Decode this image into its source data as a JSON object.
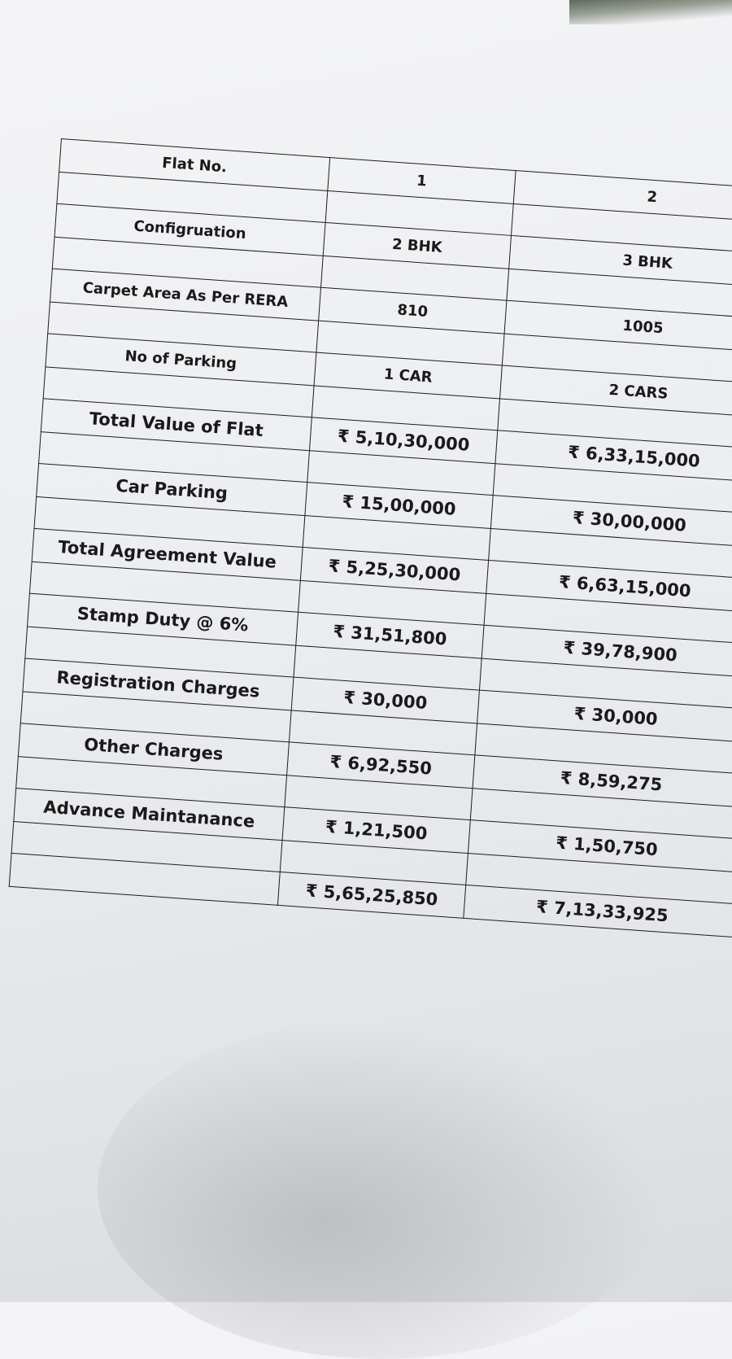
{
  "table": {
    "rows": [
      {
        "label": "Flat No.",
        "flat1": "1",
        "flat2": "2"
      },
      {
        "label": "Configruation",
        "flat1": "2 BHK",
        "flat2": "3 BHK"
      },
      {
        "label": "Carpet Area As Per RERA",
        "flat1": "810",
        "flat2": "1005"
      },
      {
        "label": "No of Parking",
        "flat1": "1 CAR",
        "flat2": "2 CARS"
      },
      {
        "label": "Total Value of Flat",
        "flat1": "₹ 5,10,30,000",
        "flat2": "₹ 6,33,15,000"
      },
      {
        "label": "Car Parking",
        "flat1": "₹ 15,00,000",
        "flat2": "₹ 30,00,000"
      },
      {
        "label": "Total Agreement Value",
        "flat1": "₹ 5,25,30,000",
        "flat2": "₹ 6,63,15,000"
      },
      {
        "label": "Stamp Duty @ 6%",
        "flat1": "₹ 31,51,800",
        "flat2": "₹ 39,78,900"
      },
      {
        "label": "Registration Charges",
        "flat1": "₹ 30,000",
        "flat2": "₹ 30,000"
      },
      {
        "label": "Other Charges",
        "flat1": "₹ 6,92,550",
        "flat2": "₹ 8,59,275"
      },
      {
        "label": "Advance Maintanance",
        "flat1": "₹ 1,21,500",
        "flat2": "₹ 1,50,750"
      },
      {
        "label": "",
        "flat1": "₹ 5,65,25,850",
        "flat2": "₹ 7,13,33,925"
      }
    ]
  }
}
